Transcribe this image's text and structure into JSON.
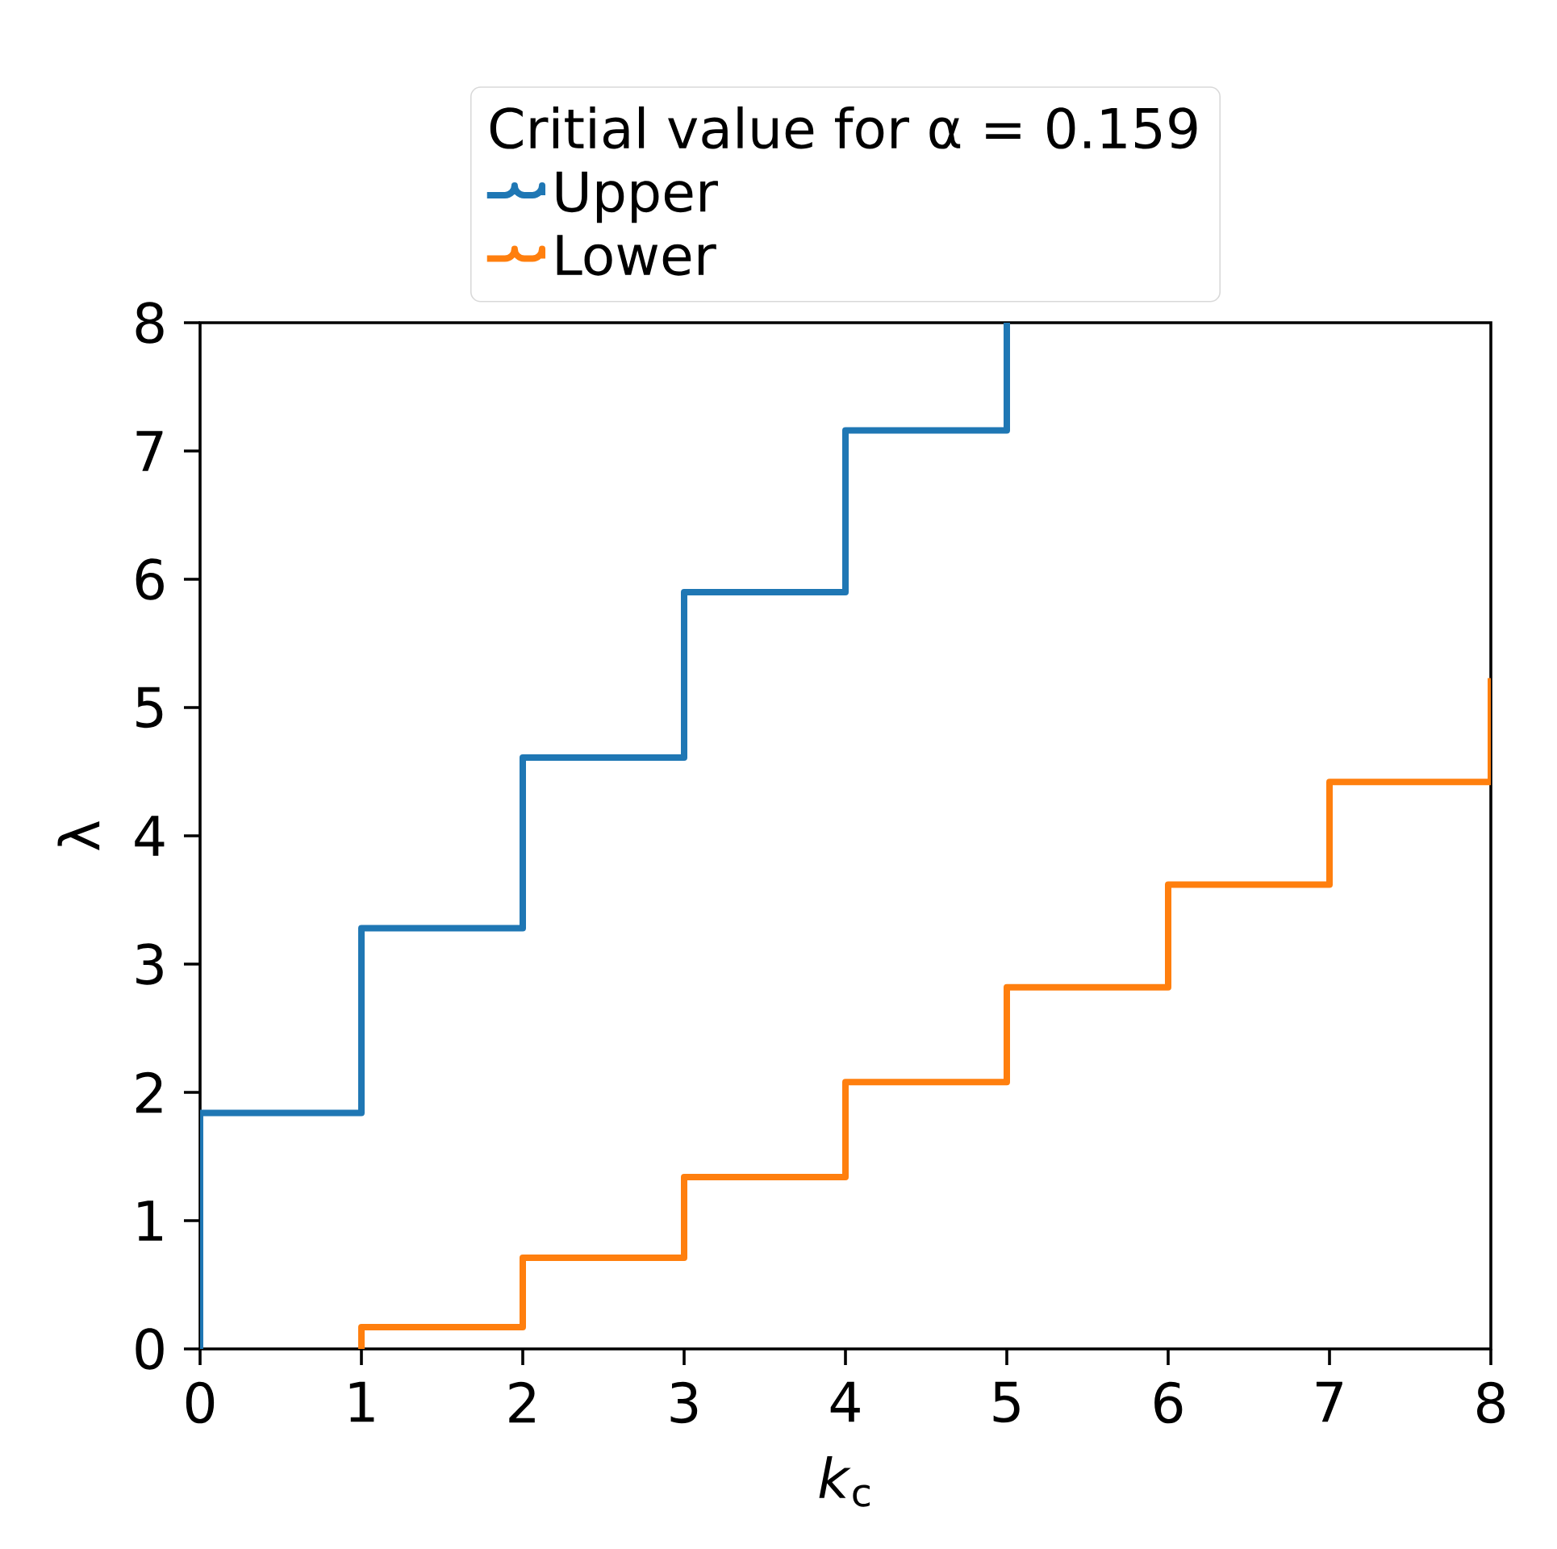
{
  "chart_data": {
    "type": "step",
    "xlabel": "*k*$_{c}$",
    "ylabel": "λ",
    "legend_title": "Critial value for α = 0.159",
    "legend": "top",
    "xlim": [
      0,
      8
    ],
    "ylim": [
      0,
      8
    ],
    "xticks": [
      0,
      1,
      2,
      3,
      4,
      5,
      6,
      7,
      8
    ],
    "yticks": [
      0,
      1,
      2,
      3,
      4,
      5,
      6,
      7,
      8
    ],
    "grid": false,
    "series": [
      {
        "name": "Upper",
        "color": "#1f77b4",
        "x": [
          0,
          0,
          1,
          2,
          3,
          4,
          5
        ],
        "values": [
          0,
          1.84,
          3.28,
          4.61,
          5.9,
          7.16,
          8
        ]
      },
      {
        "name": "Lower",
        "color": "#ff7f0e",
        "x": [
          1,
          1,
          2,
          3,
          4,
          5,
          6,
          7,
          8
        ],
        "values": [
          0,
          0.17,
          0.71,
          1.34,
          2.08,
          2.82,
          3.62,
          4.42,
          5.23
        ]
      }
    ]
  }
}
